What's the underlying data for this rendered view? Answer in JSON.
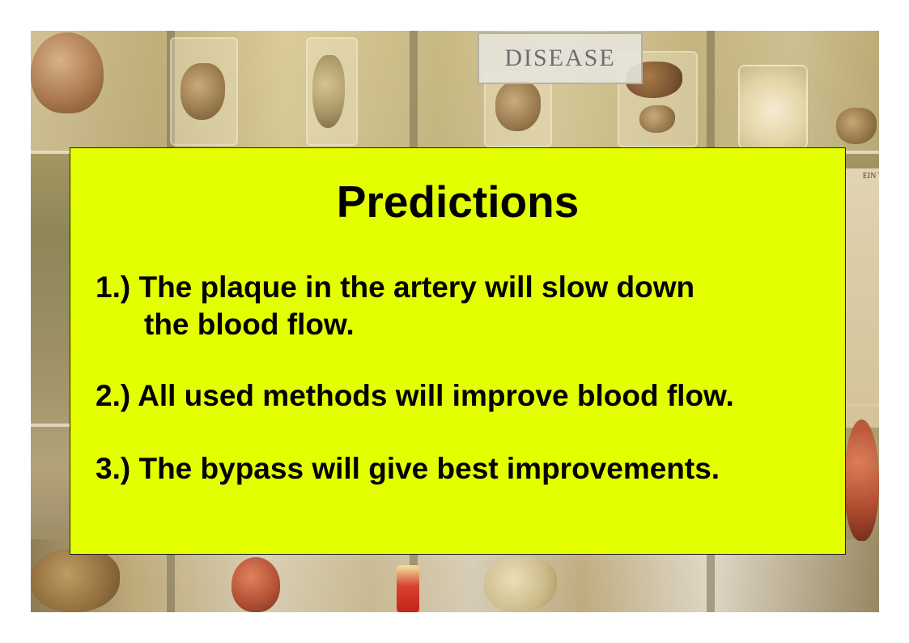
{
  "background": {
    "sign_text": "DISEASE",
    "poster_text": "EIN TH"
  },
  "panel": {
    "background_color": "#e4ff00",
    "title": "Predictions",
    "predictions": [
      {
        "number": "1.)",
        "line1": "The plaque in the artery will slow down",
        "line2": "the blood flow."
      },
      {
        "number": "2.)",
        "line1": "All used methods will improve blood flow."
      },
      {
        "number": "3.)",
        "line1": "The bypass will give best improvements."
      }
    ]
  }
}
